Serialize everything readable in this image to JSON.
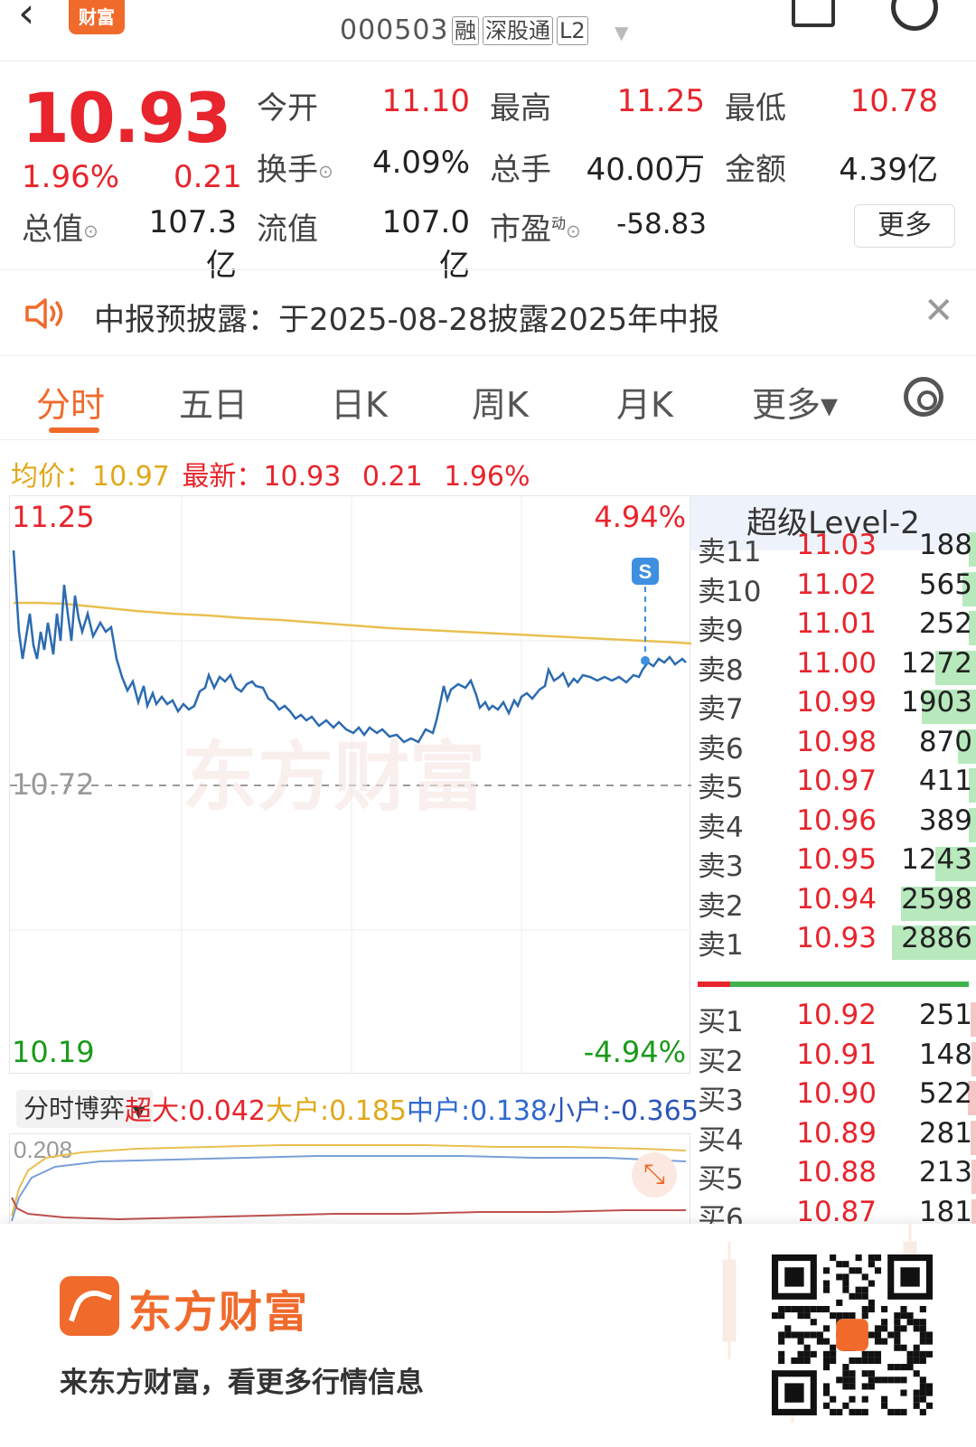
{
  "header": {
    "back_icon": "‹",
    "app_logo_text": "财富",
    "stock_code": "000503",
    "tags": [
      "融",
      "深股通",
      "L2"
    ]
  },
  "quote": {
    "price": "10.93",
    "change_pct": "1.96%",
    "change": "0.21",
    "open_label": "今开",
    "open": "11.10",
    "high_label": "最高",
    "high": "11.25",
    "low_label": "最低",
    "low": "10.78",
    "turnover_label": "换手",
    "turnover": "4.09%",
    "volume_label": "总手",
    "volume": "40.00万",
    "amount_label": "金额",
    "amount": "4.39亿",
    "mktcap_label": "总值",
    "mktcap": "107.3亿",
    "float_label": "流值",
    "float": "107.0亿",
    "pe_label": "市盈",
    "pe_sup": "动",
    "pe": "-58.83",
    "more_button": "更多"
  },
  "notice": {
    "text": "中报预披露：于2025-08-28披露2025年中报"
  },
  "tabs": [
    "分时",
    "五日",
    "日K",
    "周K",
    "月K",
    "更多▾"
  ],
  "summary": {
    "avg_label": "均价：",
    "avg": "10.97",
    "latest_label": "最新：",
    "latest": "10.93",
    "change": "0.21",
    "change_pct": "1.96%"
  },
  "chart": {
    "top_price": "11.25",
    "top_pct": "4.94%",
    "ref_price": "10.72",
    "bottom_price": "10.19",
    "bottom_pct": "-4.94%",
    "marker": "S",
    "watermark": "东方财富"
  },
  "order_book": {
    "title": "超级Level-2",
    "asks": [
      {
        "label": "卖11",
        "price": "11.03",
        "vol": "188",
        "fill": 0.05
      },
      {
        "label": "卖10",
        "price": "11.02",
        "vol": "565",
        "fill": 0.1
      },
      {
        "label": "卖9",
        "price": "11.01",
        "vol": "252",
        "fill": 0.05
      },
      {
        "label": "卖8",
        "price": "11.00",
        "vol": "1272",
        "fill": 0.3
      },
      {
        "label": "卖7",
        "price": "10.99",
        "vol": "1903",
        "fill": 0.4
      },
      {
        "label": "卖6",
        "price": "10.98",
        "vol": "870",
        "fill": 0.13
      },
      {
        "label": "卖5",
        "price": "10.97",
        "vol": "411",
        "fill": 0.05
      },
      {
        "label": "卖4",
        "price": "10.96",
        "vol": "389",
        "fill": 0.05
      },
      {
        "label": "卖3",
        "price": "10.95",
        "vol": "1243",
        "fill": 0.3
      },
      {
        "label": "卖2",
        "price": "10.94",
        "vol": "2598",
        "fill": 0.55
      },
      {
        "label": "卖1",
        "price": "10.93",
        "vol": "2886",
        "fill": 0.62
      }
    ],
    "bids": [
      {
        "label": "买1",
        "price": "10.92",
        "vol": "251",
        "fill": 0.04
      },
      {
        "label": "买2",
        "price": "10.91",
        "vol": "148",
        "fill": 0.03
      },
      {
        "label": "买3",
        "price": "10.90",
        "vol": "522",
        "fill": 0.06
      },
      {
        "label": "买4",
        "price": "10.89",
        "vol": "281",
        "fill": 0.04
      },
      {
        "label": "买5",
        "price": "10.88",
        "vol": "213",
        "fill": 0.03
      },
      {
        "label": "买6",
        "price": "10.87",
        "vol": "181",
        "fill": 0.03
      }
    ]
  },
  "flow": {
    "select_label": "分时博弈",
    "super_label": "超大:",
    "super": "0.042",
    "big_label": "大户:",
    "big": "0.185",
    "mid_label": "中户:",
    "mid": "0.138",
    "small_label": "小户:",
    "small": "-0.365",
    "axis_top": "0.208"
  },
  "footer": {
    "brand": "东方财富",
    "slogan": "来东方财富，看更多行情信息"
  },
  "colors": {
    "up": "#e8242c",
    "down": "#1a9a1a",
    "accent": "#f06a2c",
    "price_line": "#2c6bb0",
    "avg_line": "#e8c050"
  }
}
